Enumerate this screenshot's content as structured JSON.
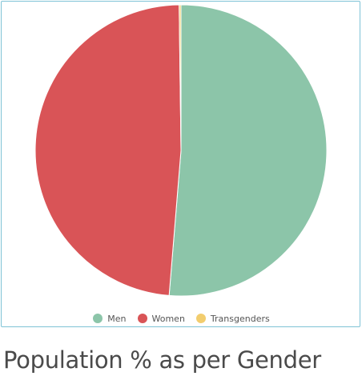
{
  "caption": "Population % as per Gender",
  "chart_data": {
    "type": "pie",
    "categories": [
      "Men",
      "Women",
      "Transgenders"
    ],
    "values": [
      51.3,
      48.5,
      0.2
    ],
    "colors": [
      "#8cc5a9",
      "#d95457",
      "#f2cd6e"
    ],
    "legend_position": "bottom"
  }
}
